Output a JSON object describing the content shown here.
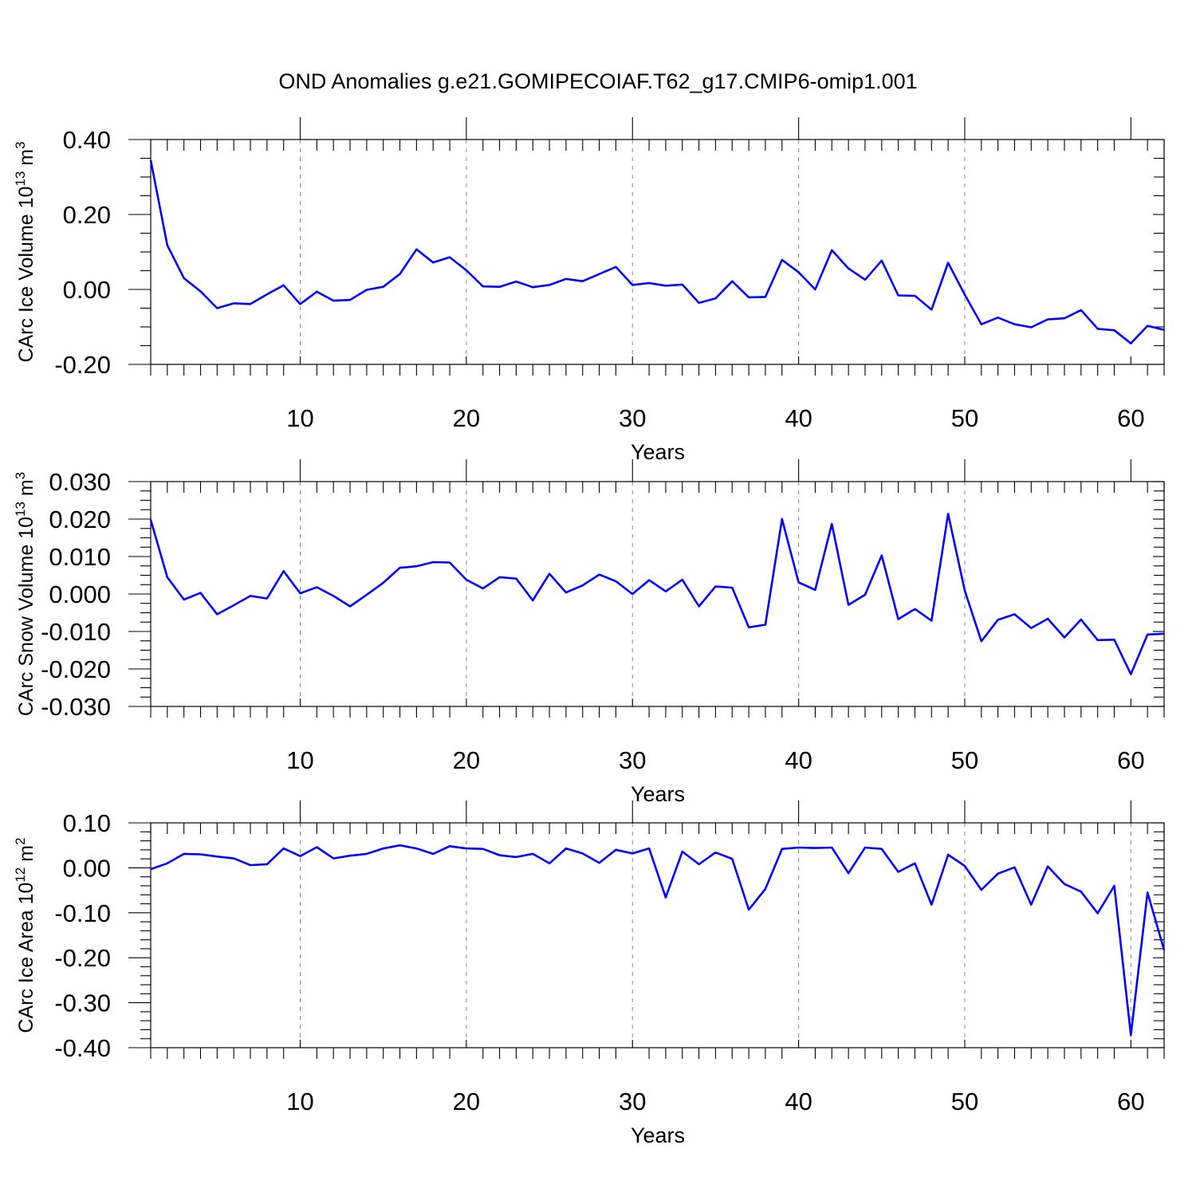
{
  "title": "OND Anomalies g.e21.GOMIPECOIAF.T62_g17.CMIP6-omip1.001",
  "colors": {
    "line": "#0000ff",
    "axis": "#000000",
    "grid": "#888888"
  },
  "chart_data": [
    {
      "type": "line",
      "ylabel": "CArc Ice Volume 10",
      "ylabel_exp": "13",
      "ylabel_unit": " m",
      "ylabel_unit_exp": "3",
      "xlabel": "Years",
      "xlim": [
        1,
        62
      ],
      "ylim": [
        -0.2,
        0.4
      ],
      "yticks": [
        -0.2,
        0.0,
        0.2,
        0.4
      ],
      "ytick_labels": [
        "-0.20",
        "0.00",
        "0.20",
        "0.40"
      ],
      "xticks": [
        10,
        20,
        30,
        40,
        50,
        60
      ],
      "xtick_labels": [
        "10",
        "20",
        "30",
        "40",
        "50",
        "60"
      ],
      "grid_x": [
        10,
        20,
        30,
        40,
        50
      ],
      "x": [
        1,
        2,
        3,
        4,
        5,
        6,
        7,
        8,
        9,
        10,
        11,
        12,
        13,
        14,
        15,
        16,
        17,
        18,
        19,
        20,
        21,
        22,
        23,
        24,
        25,
        26,
        27,
        28,
        29,
        30,
        31,
        32,
        33,
        34,
        35,
        36,
        37,
        38,
        39,
        40,
        41,
        42,
        43,
        44,
        45,
        46,
        47,
        48,
        49,
        50,
        51,
        52,
        53,
        54,
        55,
        56,
        57,
        58,
        59,
        60,
        61,
        62
      ],
      "values": [
        0.345,
        0.118,
        0.03,
        -0.005,
        -0.05,
        -0.037,
        -0.039,
        -0.013,
        0.011,
        -0.039,
        -0.006,
        -0.03,
        -0.028,
        -0.001,
        0.007,
        0.041,
        0.107,
        0.072,
        0.086,
        0.051,
        0.008,
        0.007,
        0.021,
        0.006,
        0.012,
        0.028,
        0.022,
        0.041,
        0.06,
        0.012,
        0.017,
        0.01,
        0.013,
        -0.036,
        -0.024,
        0.022,
        -0.021,
        -0.02,
        0.079,
        0.046,
        0.0,
        0.105,
        0.056,
        0.026,
        0.077,
        -0.016,
        -0.017,
        -0.054,
        0.071,
        -0.014,
        -0.093,
        -0.075,
        -0.093,
        -0.101,
        -0.08,
        -0.077,
        -0.055,
        -0.105,
        -0.109,
        -0.144,
        -0.097,
        -0.108
      ]
    },
    {
      "type": "line",
      "ylabel": "CArc Snow Volume 10",
      "ylabel_exp": "13",
      "ylabel_unit": " m",
      "ylabel_unit_exp": "3",
      "xlabel": "Years",
      "xlim": [
        1,
        62
      ],
      "ylim": [
        -0.03,
        0.03
      ],
      "yticks": [
        -0.03,
        -0.02,
        -0.01,
        0.0,
        0.01,
        0.02,
        0.03
      ],
      "ytick_labels": [
        "-0.030",
        "-0.020",
        "-0.010",
        "0.000",
        "0.010",
        "0.020",
        "0.030"
      ],
      "xticks": [
        10,
        20,
        30,
        40,
        50,
        60
      ],
      "xtick_labels": [
        "10",
        "20",
        "30",
        "40",
        "50",
        "60"
      ],
      "grid_x": [
        10,
        20,
        30,
        40,
        50
      ],
      "x": [
        1,
        2,
        3,
        4,
        5,
        6,
        7,
        8,
        9,
        10,
        11,
        12,
        13,
        14,
        15,
        16,
        17,
        18,
        19,
        20,
        21,
        22,
        23,
        24,
        25,
        26,
        27,
        28,
        29,
        30,
        31,
        32,
        33,
        34,
        35,
        36,
        37,
        38,
        39,
        40,
        41,
        42,
        43,
        44,
        45,
        46,
        47,
        48,
        49,
        50,
        51,
        52,
        53,
        54,
        55,
        56,
        57,
        58,
        59,
        60,
        61,
        62
      ],
      "values": [
        0.0198,
        0.0045,
        -0.0015,
        0.0003,
        -0.0054,
        -0.003,
        -0.0005,
        -0.0012,
        0.0061,
        0.0002,
        0.0018,
        -0.0005,
        -0.0033,
        -0.0002,
        0.003,
        0.007,
        0.0074,
        0.0085,
        0.0084,
        0.0038,
        0.0015,
        0.0045,
        0.0041,
        -0.0017,
        0.0054,
        0.0004,
        0.0023,
        0.0052,
        0.0034,
        0.0,
        0.0037,
        0.0007,
        0.0038,
        -0.0033,
        0.002,
        0.0017,
        -0.0089,
        -0.0082,
        0.02,
        0.0031,
        0.0011,
        0.0187,
        -0.0029,
        -0.0002,
        0.0103,
        -0.0067,
        -0.004,
        -0.0071,
        0.0214,
        0.0009,
        -0.0126,
        -0.0069,
        -0.0054,
        -0.0091,
        -0.0066,
        -0.0116,
        -0.0068,
        -0.0123,
        -0.0122,
        -0.0214,
        -0.0108,
        -0.0106
      ]
    },
    {
      "type": "line",
      "ylabel": "CArc Ice Area 10",
      "ylabel_exp": "12",
      "ylabel_unit": " m",
      "ylabel_unit_exp": "2",
      "xlabel": "Years",
      "xlim": [
        1,
        62
      ],
      "ylim": [
        -0.4,
        0.1
      ],
      "yticks": [
        -0.4,
        -0.3,
        -0.2,
        -0.1,
        0.0,
        0.1
      ],
      "ytick_labels": [
        "-0.40",
        "-0.30",
        "-0.20",
        "-0.10",
        "0.00",
        "0.10"
      ],
      "xticks": [
        10,
        20,
        30,
        40,
        50,
        60
      ],
      "xtick_labels": [
        "10",
        "20",
        "30",
        "40",
        "50",
        "60"
      ],
      "grid_x": [
        10,
        20,
        30,
        40,
        50,
        60
      ],
      "x": [
        1,
        2,
        3,
        4,
        5,
        6,
        7,
        8,
        9,
        10,
        11,
        12,
        13,
        14,
        15,
        16,
        17,
        18,
        19,
        20,
        21,
        22,
        23,
        24,
        25,
        26,
        27,
        28,
        29,
        30,
        31,
        32,
        33,
        34,
        35,
        36,
        37,
        38,
        39,
        40,
        41,
        42,
        43,
        44,
        45,
        46,
        47,
        48,
        49,
        50,
        51,
        52,
        53,
        54,
        55,
        56,
        57,
        58,
        59,
        60,
        61,
        62
      ],
      "values": [
        -0.003,
        0.01,
        0.031,
        0.03,
        0.025,
        0.021,
        0.006,
        0.008,
        0.043,
        0.026,
        0.046,
        0.021,
        0.027,
        0.031,
        0.043,
        0.05,
        0.043,
        0.031,
        0.048,
        0.043,
        0.042,
        0.028,
        0.024,
        0.031,
        0.01,
        0.043,
        0.032,
        0.011,
        0.04,
        0.032,
        0.043,
        -0.066,
        0.036,
        0.008,
        0.034,
        0.02,
        -0.093,
        -0.047,
        0.042,
        0.045,
        0.044,
        0.045,
        -0.012,
        0.045,
        0.042,
        -0.009,
        0.01,
        -0.082,
        0.029,
        0.004,
        -0.049,
        -0.013,
        0.001,
        -0.082,
        0.003,
        -0.036,
        -0.053,
        -0.101,
        -0.04,
        -0.372,
        -0.055,
        -0.183
      ]
    }
  ]
}
